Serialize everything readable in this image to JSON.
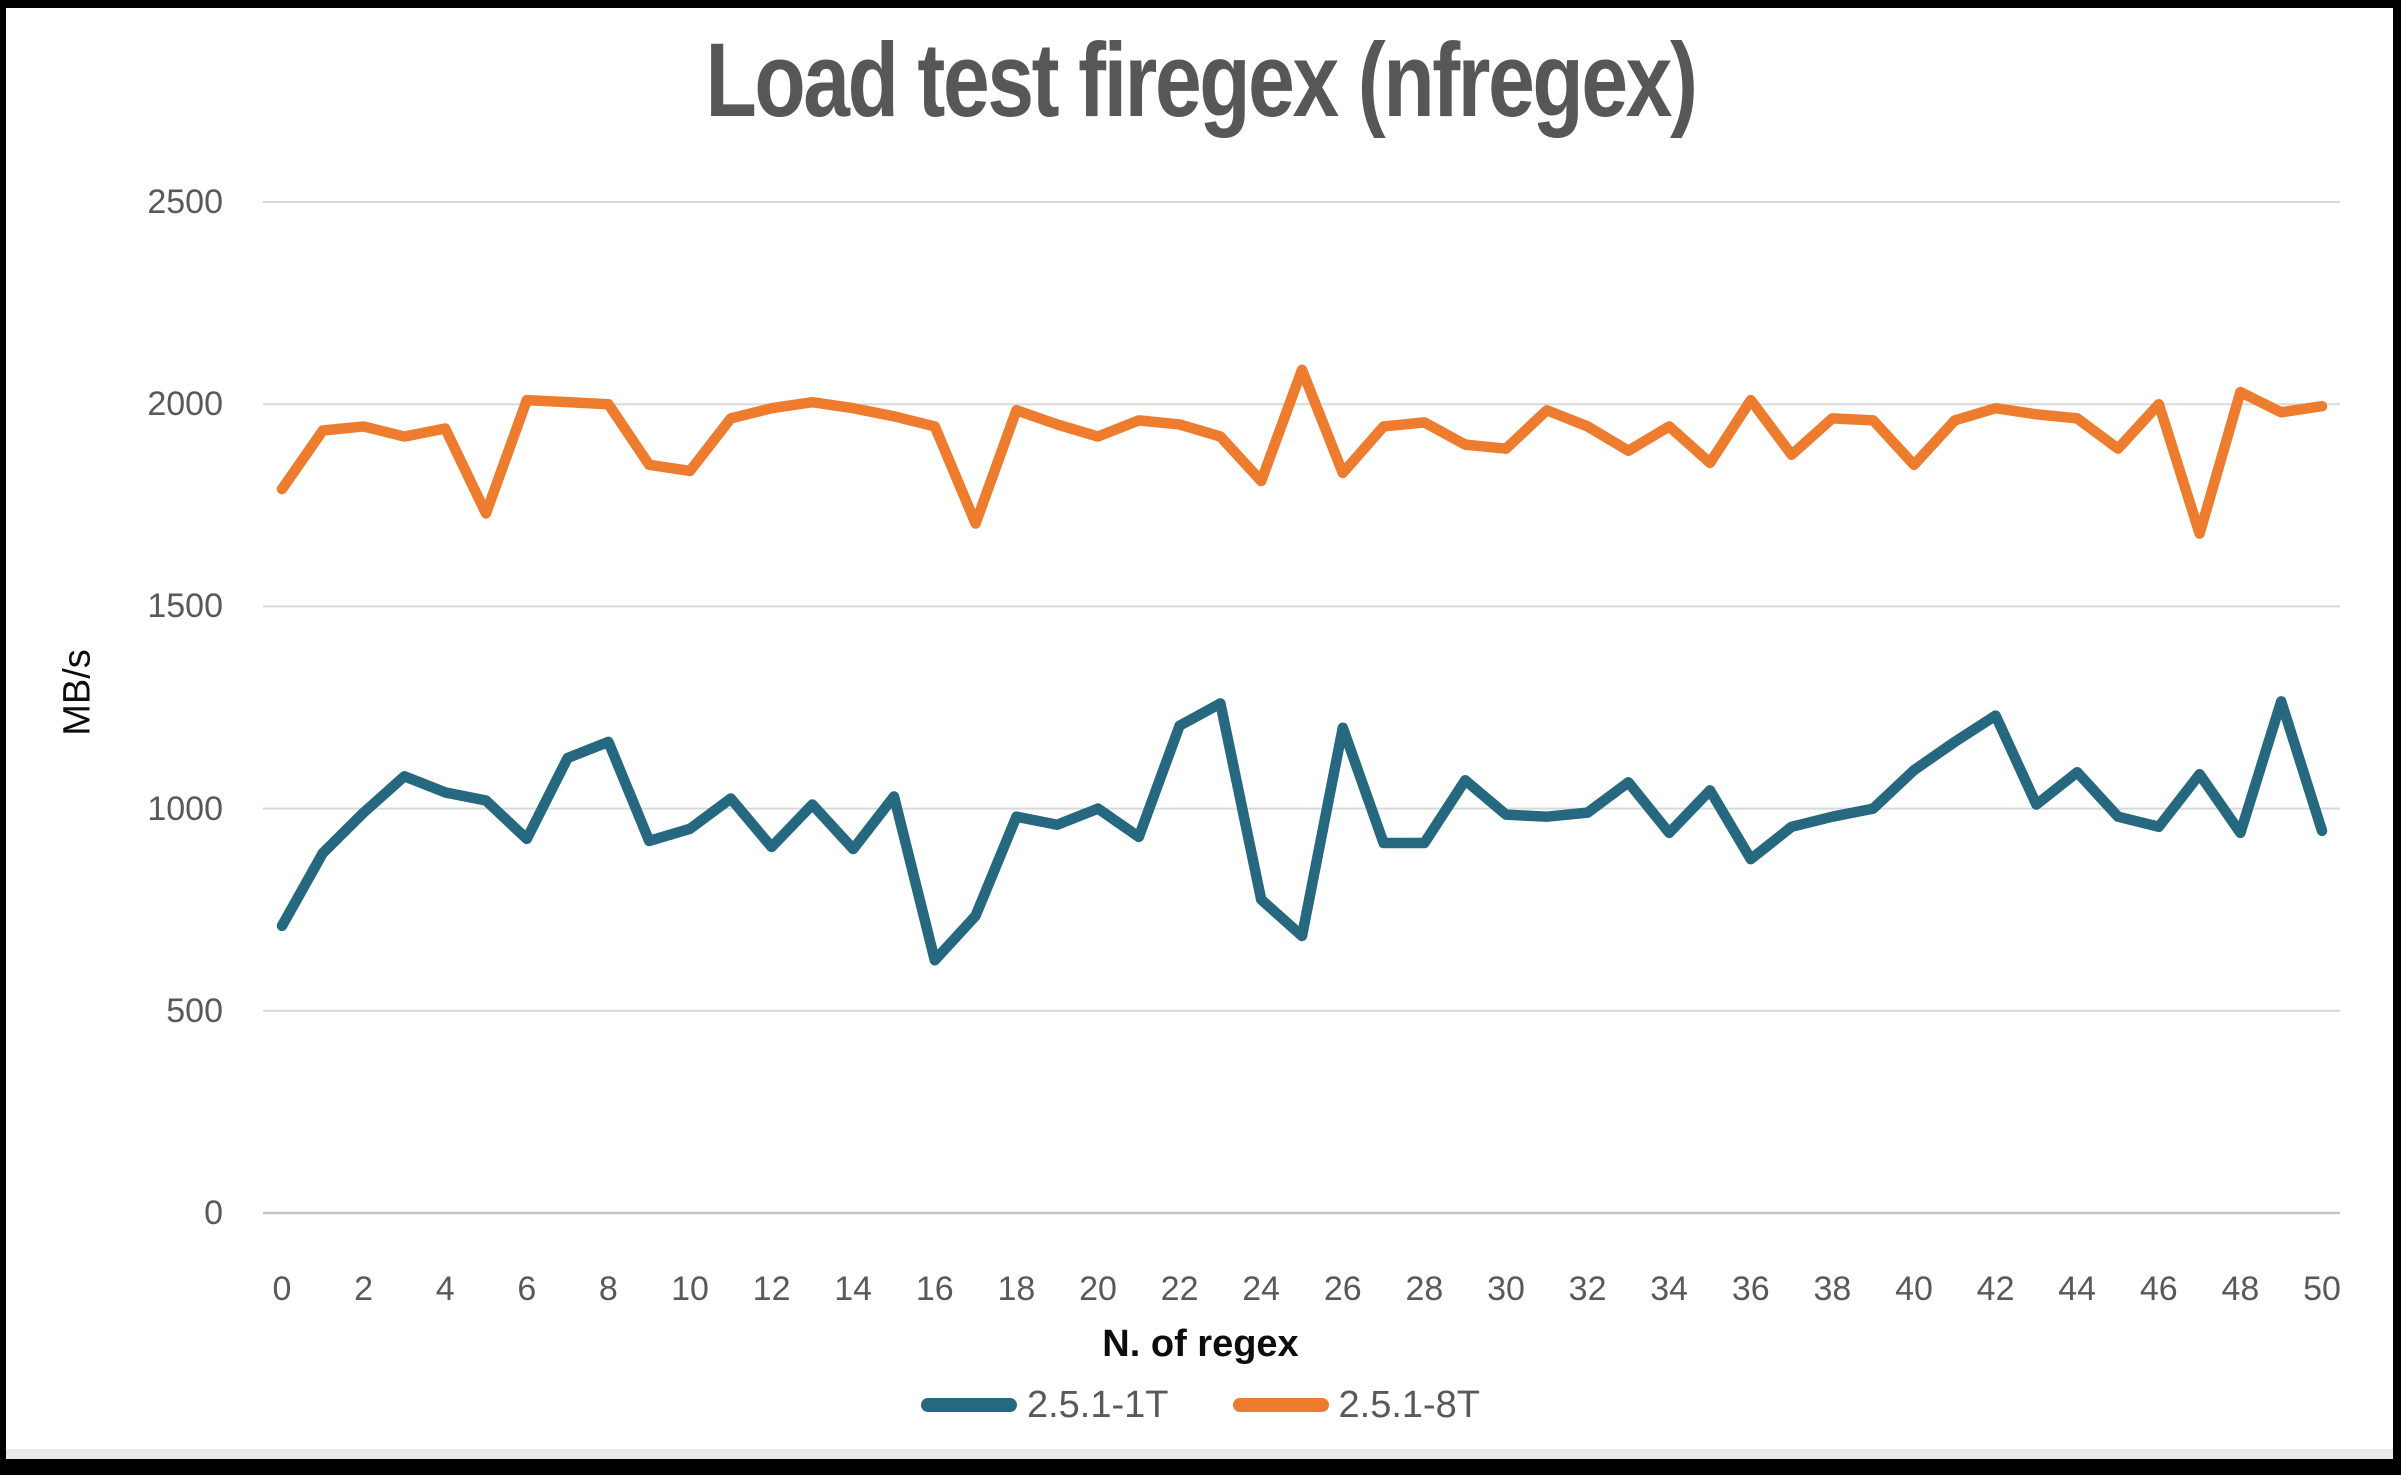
{
  "title": "Load test firegex (nfregex)",
  "chart_data": {
    "type": "line",
    "title": "Load test firegex (nfregex)",
    "xlabel": "N. of regex",
    "ylabel": "MB/s",
    "xlim": [
      0,
      50
    ],
    "ylim": [
      0,
      2500
    ],
    "grid": true,
    "legend_position": "bottom",
    "y_ticks": [
      0,
      500,
      1000,
      1500,
      2000,
      2500
    ],
    "x_ticks": [
      0,
      2,
      4,
      6,
      8,
      10,
      12,
      14,
      16,
      18,
      20,
      22,
      24,
      26,
      28,
      30,
      32,
      34,
      36,
      38,
      40,
      42,
      44,
      46,
      48,
      50
    ],
    "x": [
      0,
      1,
      2,
      3,
      4,
      5,
      6,
      7,
      8,
      9,
      10,
      11,
      12,
      13,
      14,
      15,
      16,
      17,
      18,
      19,
      20,
      21,
      22,
      23,
      24,
      25,
      26,
      27,
      28,
      29,
      30,
      31,
      32,
      33,
      34,
      35,
      36,
      37,
      38,
      39,
      40,
      41,
      42,
      43,
      44,
      45,
      46,
      47,
      48,
      49,
      50
    ],
    "gridline_color": "#d9d9d9",
    "axis_line_color": "#c6c6c6",
    "series": [
      {
        "name": "2.5.1-1T",
        "color": "#256880",
        "values": [
          710,
          890,
          990,
          1080,
          1040,
          1020,
          925,
          1125,
          1165,
          920,
          950,
          1025,
          905,
          1010,
          900,
          1030,
          625,
          735,
          980,
          960,
          1000,
          930,
          1205,
          1260,
          775,
          685,
          1200,
          915,
          915,
          1070,
          985,
          980,
          990,
          1065,
          940,
          1045,
          875,
          955,
          980,
          1000,
          1095,
          1165,
          1230,
          1010,
          1090,
          980,
          955,
          1085,
          940,
          1265,
          945
        ]
      },
      {
        "name": "2.5.1-8T",
        "color": "#ed7c2f",
        "values": [
          1790,
          1935,
          1945,
          1920,
          1940,
          1730,
          2010,
          2005,
          2000,
          1850,
          1835,
          1965,
          1990,
          2005,
          1990,
          1970,
          1945,
          1705,
          1985,
          1950,
          1920,
          1960,
          1950,
          1920,
          1810,
          2085,
          1830,
          1945,
          1955,
          1900,
          1890,
          1985,
          1945,
          1885,
          1945,
          1855,
          2010,
          1875,
          1965,
          1960,
          1850,
          1960,
          1990,
          1975,
          1965,
          1890,
          2000,
          1680,
          2030,
          1980,
          1995
        ]
      }
    ]
  }
}
